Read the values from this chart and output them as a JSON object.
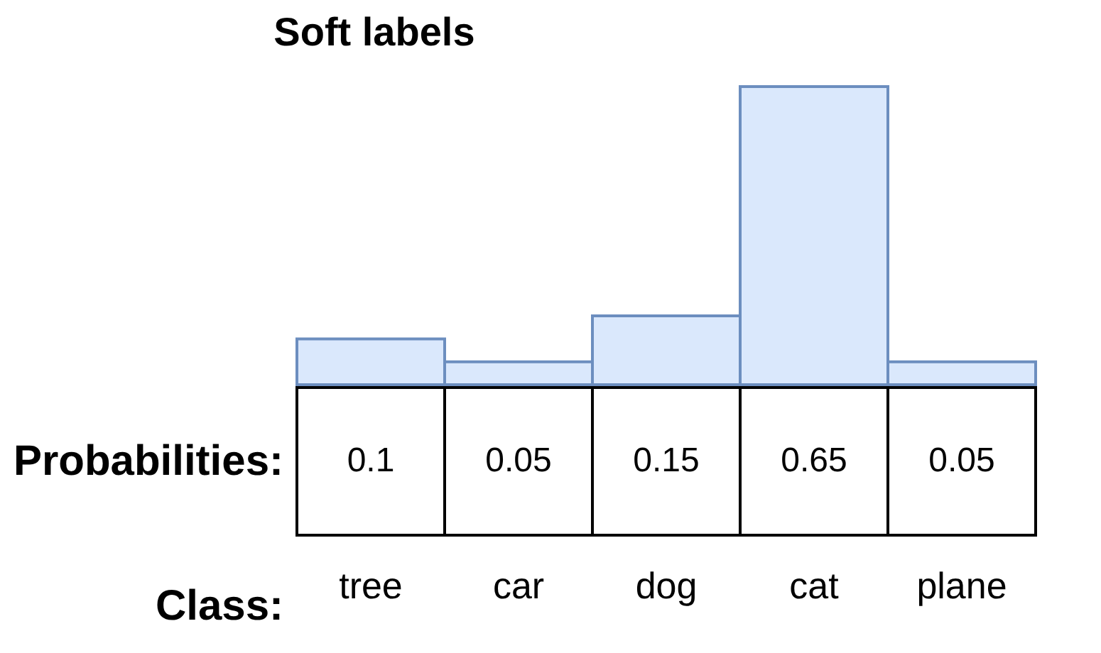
{
  "chart_data": {
    "type": "bar",
    "title": "Soft labels",
    "xlabel": "Class:",
    "ylabel": "Probabilities:",
    "categories": [
      "tree",
      "car",
      "dog",
      "cat",
      "plane"
    ],
    "values": [
      0.1,
      0.05,
      0.15,
      0.65,
      0.05
    ],
    "color": "#dae8fc",
    "data_labels": true
  }
}
